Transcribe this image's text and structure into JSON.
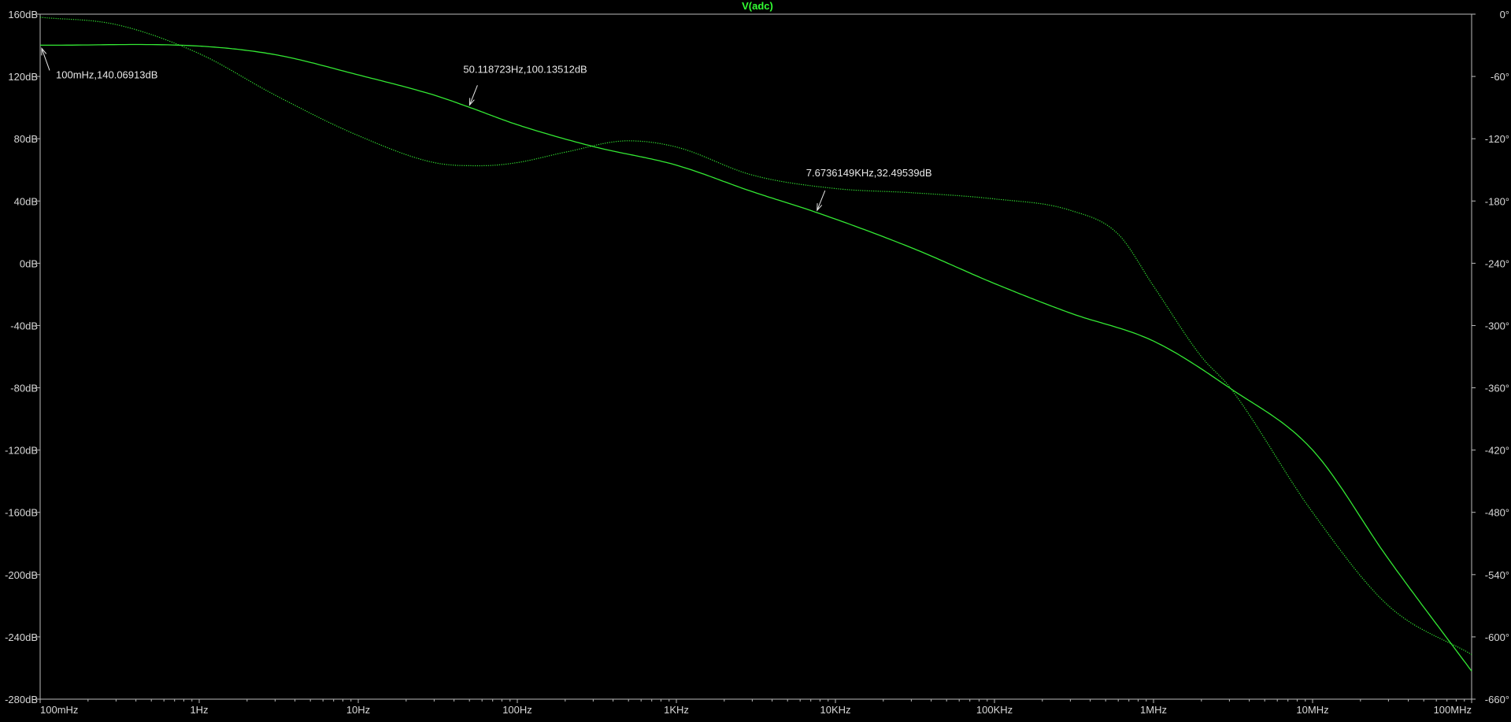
{
  "chart_data": {
    "type": "line",
    "title": "V(adc)",
    "title_color": "#33ff33",
    "x_scale": "log",
    "xlim_hz": [
      0.1,
      100000000
    ],
    "x_tick_labels": [
      "100mHz",
      "1Hz",
      "10Hz",
      "100Hz",
      "1KHz",
      "10KHz",
      "100KHz",
      "1MHz",
      "10MHz",
      "100MHz"
    ],
    "x_tick_values_hz": [
      0.1,
      1,
      10,
      100,
      1000,
      10000,
      100000,
      1000000,
      10000000,
      100000000
    ],
    "y_left": {
      "unit": "dB",
      "range": [
        -280,
        160
      ],
      "tick_labels": [
        "160dB",
        "120dB",
        "80dB",
        "40dB",
        "0dB",
        "-40dB",
        "-80dB",
        "-120dB",
        "-160dB",
        "-200dB",
        "-240dB",
        "-280dB"
      ],
      "tick_values": [
        160,
        120,
        80,
        40,
        0,
        -40,
        -80,
        -120,
        -160,
        -200,
        -240,
        -280
      ]
    },
    "y_right": {
      "unit": "degrees",
      "range": [
        -660,
        0
      ],
      "tick_labels": [
        "0°",
        "-60°",
        "-120°",
        "-180°",
        "-240°",
        "-300°",
        "-360°",
        "-420°",
        "-480°",
        "-540°",
        "-600°",
        "-660°"
      ],
      "tick_values": [
        0,
        -60,
        -120,
        -180,
        -240,
        -300,
        -360,
        -420,
        -480,
        -540,
        -600,
        -660
      ]
    },
    "grid": false,
    "series": [
      {
        "axis": "left",
        "style": "solid",
        "color": "#33e833",
        "x": [
          0.1,
          1,
          3,
          10,
          30,
          50.12,
          100,
          300,
          1000,
          3000,
          7674,
          30000,
          100000,
          300000,
          1000000,
          3000000,
          10000000,
          30000000,
          100000000
        ],
        "y": [
          140.07,
          139.5,
          134,
          121,
          108,
          100.14,
          89,
          75,
          63,
          46,
          32.5,
          10,
          -13,
          -32,
          -50,
          -80,
          -120,
          -190,
          -262
        ]
      },
      {
        "axis": "right",
        "style": "dotted",
        "color": "#33e833",
        "x": [
          0.1,
          0.3,
          1,
          3,
          10,
          30,
          60,
          100,
          200,
          500,
          1000,
          3000,
          10000,
          30000,
          100000,
          300000,
          600000,
          1000000,
          2000000,
          3000000,
          10000000,
          30000000,
          100000000
        ],
        "y": [
          -3,
          -10,
          -38,
          -78,
          -117,
          -143,
          -146,
          -143,
          -133,
          -122,
          -128,
          -155,
          -168,
          -172,
          -178,
          -189,
          -212,
          -262,
          -330,
          -359,
          -480,
          -570,
          -617
        ]
      }
    ],
    "annotations": [
      {
        "text": "100mHz,140.06913dB",
        "x": 0.1,
        "y": 140.07
      },
      {
        "text": "50.118723Hz,100.13512dB",
        "x": 50.12,
        "y": 100.14
      },
      {
        "text": "7.6736149KHz,32.49539dB",
        "x": 7674,
        "y": 32.5
      }
    ]
  }
}
